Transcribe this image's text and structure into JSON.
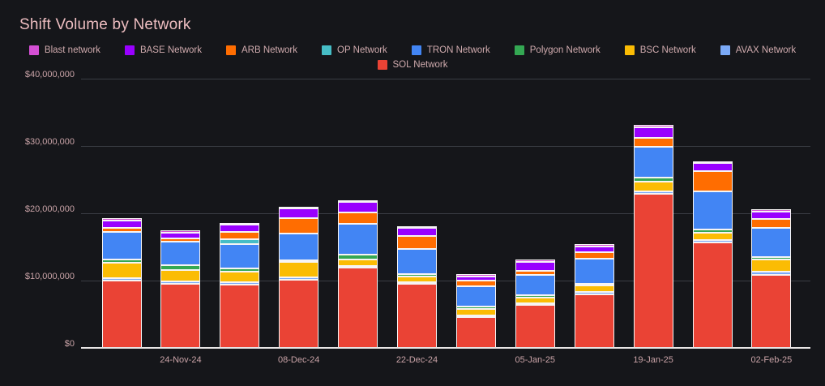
{
  "page": {
    "title": "Shift Volume by Network"
  },
  "chart_data": {
    "type": "bar",
    "stacked": true,
    "title": "Shift Volume by Network",
    "xlabel": "",
    "ylabel": "",
    "grid": true,
    "legend_position": "top",
    "ylim": [
      0,
      40000000
    ],
    "y_tick_values": [
      0,
      10000000,
      20000000,
      30000000,
      40000000
    ],
    "y_tick_labels": [
      "$0",
      "$10,000,000",
      "$20,000,000",
      "$30,000,000",
      "$40,000,000"
    ],
    "categories": [
      "",
      "24-Nov-24",
      "",
      "08-Dec-24",
      "",
      "22-Dec-24",
      "",
      "05-Jan-25",
      "",
      "19-Jan-25",
      "",
      "02-Feb-25"
    ],
    "legend_rows": [
      [
        "Blast network",
        "BASE Network",
        "ARB Network",
        "OP Network",
        "TRON Network",
        "Polygon Network",
        "BSC Network",
        "AVAX Network"
      ],
      [
        "SOL Network"
      ]
    ],
    "colors": {
      "Blast network": "#d44fd4",
      "BASE Network": "#9900ff",
      "ARB Network": "#ff6d01",
      "OP Network": "#46bdc6",
      "TRON Network": "#4285f4",
      "Polygon Network": "#34a853",
      "BSC Network": "#fbbc04",
      "AVAX Network": "#7baaf7",
      "SOL Network": "#ea4335"
    },
    "stack_order_bottom_to_top": [
      "SOL Network",
      "AVAX Network",
      "BSC Network",
      "Polygon Network",
      "TRON Network",
      "OP Network",
      "ARB Network",
      "BASE Network",
      "Blast network"
    ],
    "series": [
      {
        "name": "SOL Network",
        "values": [
          10100000,
          9600000,
          9500000,
          10200000,
          12000000,
          9600000,
          4700000,
          6500000,
          8100000,
          23000000,
          15800000,
          11000000
        ]
      },
      {
        "name": "AVAX Network",
        "values": [
          350000,
          400000,
          400000,
          350000,
          200000,
          250000,
          150000,
          100000,
          300000,
          400000,
          300000,
          500000
        ]
      },
      {
        "name": "BSC Network",
        "values": [
          2300000,
          1750000,
          1500000,
          2300000,
          1000000,
          800000,
          950000,
          850000,
          950000,
          1400000,
          1150000,
          1700000
        ]
      },
      {
        "name": "Polygon Network",
        "values": [
          450000,
          700000,
          500000,
          300000,
          700000,
          350000,
          350000,
          300000,
          300000,
          600000,
          500000,
          400000
        ]
      },
      {
        "name": "TRON Network",
        "values": [
          4200000,
          3500000,
          3700000,
          4000000,
          4600000,
          3800000,
          3000000,
          3000000,
          3700000,
          4600000,
          5600000,
          4400000
        ]
      },
      {
        "name": "OP Network",
        "values": [
          0,
          0,
          700000,
          0,
          0,
          0,
          0,
          0,
          0,
          0,
          0,
          0
        ]
      },
      {
        "name": "ARB Network",
        "values": [
          600000,
          400000,
          1050000,
          2200000,
          1600000,
          1900000,
          850000,
          650000,
          1000000,
          1300000,
          3100000,
          1250000
        ]
      },
      {
        "name": "BASE Network",
        "values": [
          1100000,
          900000,
          1050000,
          1450000,
          1600000,
          1200000,
          600000,
          1300000,
          850000,
          1650000,
          1100000,
          1150000
        ]
      },
      {
        "name": "Blast network",
        "values": [
          350000,
          300000,
          300000,
          300000,
          300000,
          300000,
          250000,
          300000,
          250000,
          250000,
          250000,
          300000
        ]
      }
    ]
  }
}
